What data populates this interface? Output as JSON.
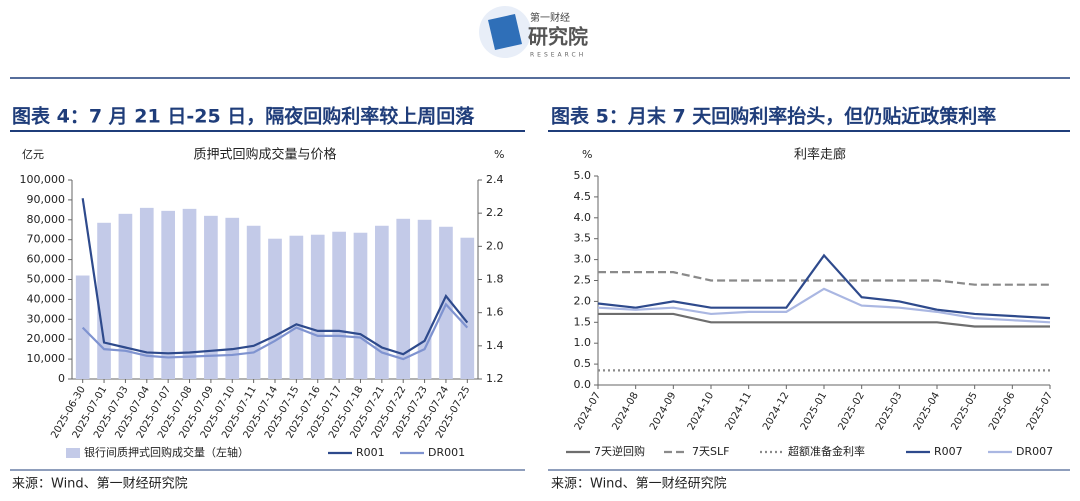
{
  "header": {
    "logo_top": "第一财经",
    "logo_main": "研究院",
    "logo_sub": "RESEARCH"
  },
  "panels": [
    {
      "title": "图表 4：7 月 21 日-25 日，隔夜回购利率较上周回落",
      "source": "来源：Wind、第一财经研究院"
    },
    {
      "title": "图表 5：月末 7 天回购利率抬头，但仍贴近政策利率",
      "source": "来源：Wind、第一财经研究院"
    }
  ],
  "chart_data": [
    {
      "type": "bar",
      "title": "质押式回购成交量与价格",
      "y_label": "亿元",
      "y2_label": "%",
      "categories": [
        "2025-06-30",
        "2025-07-01",
        "2025-07-03",
        "2025-07-04",
        "2025-07-07",
        "2025-07-08",
        "2025-07-09",
        "2025-07-10",
        "2025-07-11",
        "2025-07-14",
        "2025-07-15",
        "2025-07-16",
        "2025-07-17",
        "2025-07-18",
        "2025-07-21",
        "2025-07-22",
        "2025-07-23",
        "2025-07-24",
        "2025-07-25"
      ],
      "series": [
        {
          "name": "银行间质押式回购成交量（左轴）",
          "type": "bar",
          "color": "#c3cae8",
          "values": [
            52000,
            78500,
            83000,
            86000,
            84500,
            85500,
            82000,
            81000,
            77000,
            70500,
            72000,
            72500,
            74000,
            73500,
            77000,
            80500,
            80000,
            76500,
            71000
          ]
        },
        {
          "name": "R001",
          "type": "line",
          "axis": "y2",
          "color": "#2e4a8c",
          "values": [
            2.29,
            1.42,
            1.39,
            1.36,
            1.355,
            1.36,
            1.37,
            1.38,
            1.4,
            1.46,
            1.53,
            1.49,
            1.49,
            1.47,
            1.39,
            1.35,
            1.43,
            1.7,
            1.54
          ]
        },
        {
          "name": "DR001",
          "type": "line",
          "axis": "y2",
          "color": "#7f93d0",
          "values": [
            1.51,
            1.38,
            1.37,
            1.34,
            1.33,
            1.335,
            1.34,
            1.345,
            1.36,
            1.43,
            1.51,
            1.46,
            1.46,
            1.45,
            1.36,
            1.32,
            1.38,
            1.65,
            1.51
          ]
        }
      ],
      "ylim": [
        0,
        100000
      ],
      "yticks": [
        0,
        {
          "value": 10000,
          "label": "10,000"
        },
        {
          "value": 20000,
          "label": "20,000"
        },
        {
          "value": 30000,
          "label": "30,000"
        },
        {
          "value": 40000,
          "label": "40,000"
        },
        {
          "value": 50000,
          "label": "50,000"
        },
        {
          "value": 60000,
          "label": "60,000"
        },
        {
          "value": 70000,
          "label": "70,000"
        },
        {
          "value": 80000,
          "label": "80,000"
        },
        {
          "value": 90000,
          "label": "90,000"
        },
        {
          "value": 100000,
          "label": "100,000"
        }
      ],
      "y2lim": [
        1.2,
        2.4
      ],
      "y2ticks": [
        1.2,
        1.4,
        1.6,
        1.8,
        {
          "value": 2,
          "label": "2.0"
        },
        2.2,
        2.4
      ]
    },
    {
      "type": "line",
      "title": "利率走廊",
      "y_label": "%",
      "categories": [
        "2024-07",
        "2024-08",
        "2024-09",
        "2024-10",
        "2024-11",
        "2024-12",
        "2025-01",
        "2025-02",
        "2025-03",
        "2025-04",
        "2025-05",
        "2025-06",
        "2025-07"
      ],
      "series": [
        {
          "name": "7天逆回购",
          "color": "#6e6e6e",
          "dash": "solid",
          "values": [
            1.7,
            1.7,
            1.7,
            1.5,
            1.5,
            1.5,
            1.5,
            1.5,
            1.5,
            1.5,
            1.4,
            1.4,
            1.4
          ]
        },
        {
          "name": "7天SLF",
          "color": "#8a8a8a",
          "dash": "dashed",
          "values": [
            2.7,
            2.7,
            2.7,
            2.5,
            2.5,
            2.5,
            2.5,
            2.5,
            2.5,
            2.5,
            2.4,
            2.4,
            2.4
          ]
        },
        {
          "name": "超额准备金利率",
          "color": "#8a8a8a",
          "dash": "dotted",
          "values": [
            0.35,
            0.35,
            0.35,
            0.35,
            0.35,
            0.35,
            0.35,
            0.35,
            0.35,
            0.35,
            0.35,
            0.35,
            0.35
          ]
        },
        {
          "name": "R007",
          "color": "#2e4a8c",
          "dash": "solid",
          "values": [
            1.95,
            1.85,
            2.0,
            1.85,
            1.85,
            1.85,
            3.1,
            2.1,
            2.0,
            1.8,
            1.7,
            1.65,
            1.6
          ]
        },
        {
          "name": "DR007",
          "color": "#aab7e2",
          "dash": "solid",
          "values": [
            1.85,
            1.8,
            1.85,
            1.7,
            1.75,
            1.75,
            2.3,
            1.9,
            1.85,
            1.75,
            1.6,
            1.55,
            1.5
          ]
        }
      ],
      "ylim": [
        0,
        5
      ],
      "yticks": [
        {
          "value": 0,
          "label": "0.0"
        },
        0.5,
        {
          "value": 1,
          "label": "1.0"
        },
        1.5,
        {
          "value": 2,
          "label": "2.0"
        },
        2.5,
        {
          "value": 3,
          "label": "3.0"
        },
        3.5,
        {
          "value": 4,
          "label": "4.0"
        },
        4.5,
        {
          "value": 5,
          "label": "5.0"
        }
      ]
    }
  ]
}
